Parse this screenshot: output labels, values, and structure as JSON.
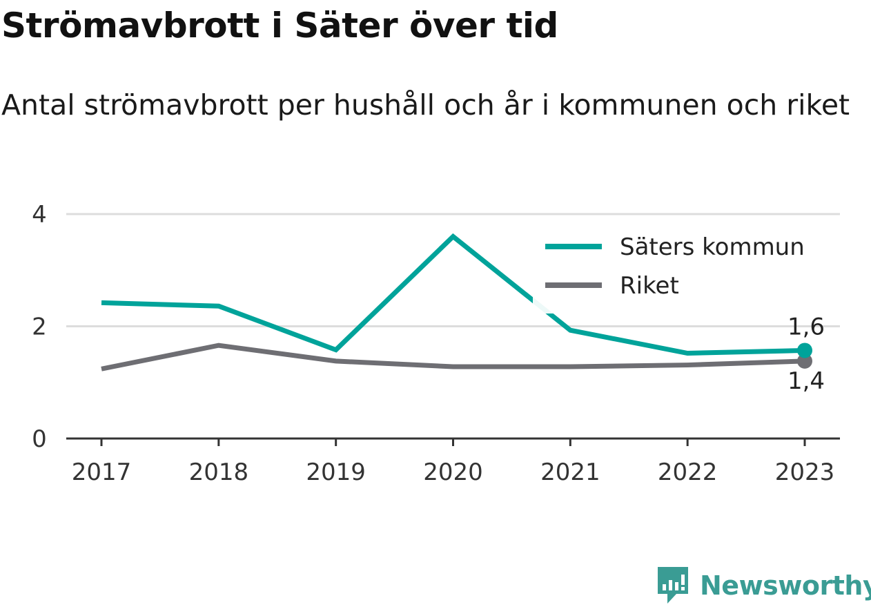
{
  "header": {
    "title": "Strömavbrott i Säter över tid",
    "subtitle": "Antal strömavbrott per hushåll och år i kommunen och riket"
  },
  "brand": {
    "name": "Newsworthy",
    "icon": "newsworthy-logo-icon",
    "color": "#3a9c94"
  },
  "colors": {
    "saters": "#00a39a",
    "riket": "#6e6e73",
    "grid": "#dddddd",
    "axis": "#333333",
    "text": "#333333"
  },
  "chart_data": {
    "type": "line",
    "title": "Strömavbrott i Säter över tid",
    "subtitle": "Antal strömavbrott per hushåll och år i kommunen och riket",
    "xlabel": "",
    "ylabel": "",
    "categories": [
      "2017",
      "2018",
      "2019",
      "2020",
      "2021",
      "2022",
      "2023"
    ],
    "ylim": [
      0,
      4
    ],
    "yticks": [
      0,
      2,
      4
    ],
    "ytick_labels": [
      "0",
      "2",
      "4"
    ],
    "grid": "horizontal",
    "legend_position": "top-right",
    "series": [
      {
        "name": "Säters kommun",
        "color": "#00a39a",
        "values": [
          2.42,
          2.36,
          1.58,
          3.6,
          1.93,
          1.52,
          1.57
        ],
        "end_label": "1,6",
        "end_label_position": "above"
      },
      {
        "name": "Riket",
        "color": "#6e6e73",
        "values": [
          1.24,
          1.66,
          1.38,
          1.28,
          1.28,
          1.31,
          1.38
        ],
        "end_label": "1,4",
        "end_label_position": "below"
      }
    ]
  }
}
